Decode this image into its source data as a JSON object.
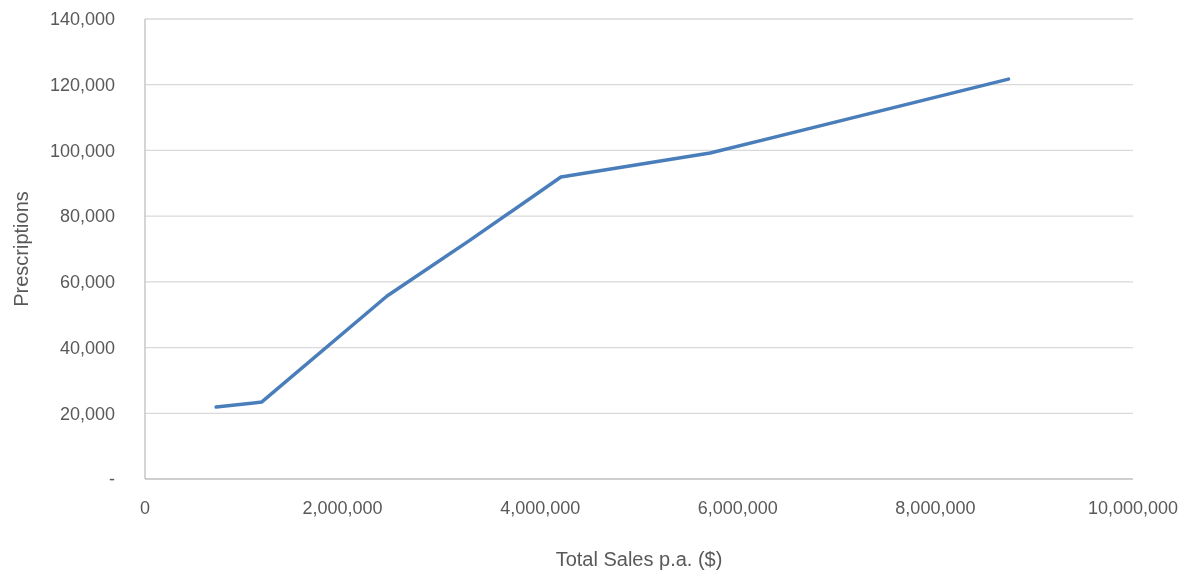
{
  "chart_data": {
    "type": "line",
    "xlabel": "Total Sales p.a. ($)",
    "ylabel": "Prescriptions",
    "x": [
      720000,
      1180000,
      2450000,
      3290000,
      4210000,
      5720000,
      8740000
    ],
    "series": [
      {
        "color": "#4a7ebb",
        "values": [
          21900,
          23400,
          55700,
          72700,
          91900,
          99200,
          121700
        ]
      }
    ],
    "xlim": [
      0,
      10000000
    ],
    "xticks": [
      0,
      {
        "value": 2000000,
        "label": "2,000,000"
      },
      {
        "value": 4000000,
        "label": "4,000,000"
      },
      {
        "value": 6000000,
        "label": "6,000,000"
      },
      {
        "value": 8000000,
        "label": "8,000,000"
      },
      {
        "value": 10000000,
        "label": "10,000,000"
      }
    ],
    "ylim": [
      0,
      140000
    ],
    "yticks": [
      {
        "value": 0,
        "label": "-"
      },
      {
        "value": 20000,
        "label": "20,000"
      },
      {
        "value": 40000,
        "label": "40,000"
      },
      {
        "value": 60000,
        "label": "60,000"
      },
      {
        "value": 80000,
        "label": "80,000"
      },
      {
        "value": 100000,
        "label": "100,000"
      },
      {
        "value": 120000,
        "label": "120,000"
      },
      {
        "value": 140000,
        "label": "140,000"
      }
    ],
    "grid": "y",
    "marker": "none",
    "line_style": "solid"
  }
}
